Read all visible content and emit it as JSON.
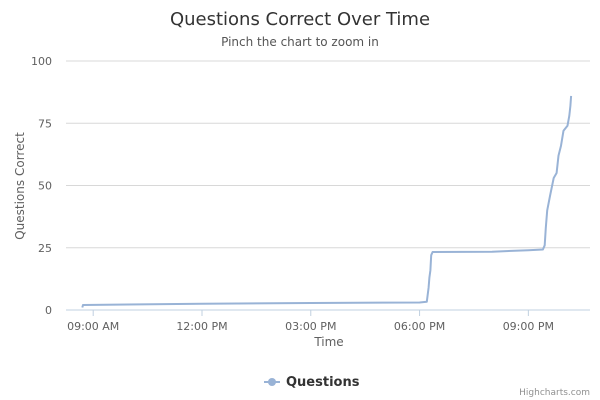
{
  "chart_data": {
    "type": "line",
    "title": "Questions Correct Over Time",
    "subtitle": "Pinch the chart to zoom in",
    "xlabel": "Time",
    "ylabel": "Questions Correct",
    "x_range_hours": [
      8.25,
      22.7
    ],
    "ylim": [
      0,
      100
    ],
    "y_ticks": [
      0,
      25,
      50,
      75,
      100
    ],
    "x_ticks": [
      {
        "value": 9,
        "label": "09:00 AM"
      },
      {
        "value": 12,
        "label": "12:00 PM"
      },
      {
        "value": 15,
        "label": "03:00 PM"
      },
      {
        "value": 18,
        "label": "06:00 PM"
      },
      {
        "value": 21,
        "label": "09:00 PM"
      }
    ],
    "grid": true,
    "legend_position": "bottom-center",
    "series": [
      {
        "name": "Questions",
        "color": "#99b3d6",
        "points": [
          [
            8.7,
            1
          ],
          [
            8.72,
            2
          ],
          [
            12.0,
            2.5
          ],
          [
            15.0,
            2.8
          ],
          [
            18.0,
            3.0
          ],
          [
            18.2,
            3.3
          ],
          [
            18.25,
            9
          ],
          [
            18.27,
            13
          ],
          [
            18.3,
            16
          ],
          [
            18.32,
            22
          ],
          [
            18.36,
            23.3
          ],
          [
            20.0,
            23.4
          ],
          [
            21.0,
            24.0
          ],
          [
            21.4,
            24.3
          ],
          [
            21.45,
            26
          ],
          [
            21.48,
            33
          ],
          [
            21.52,
            40
          ],
          [
            21.6,
            46
          ],
          [
            21.7,
            53
          ],
          [
            21.78,
            55
          ],
          [
            21.83,
            62
          ],
          [
            21.9,
            66
          ],
          [
            21.97,
            72
          ],
          [
            22.08,
            74
          ],
          [
            22.13,
            78
          ],
          [
            22.16,
            82
          ],
          [
            22.18,
            86
          ]
        ]
      }
    ],
    "credits": "Highcharts.com"
  }
}
